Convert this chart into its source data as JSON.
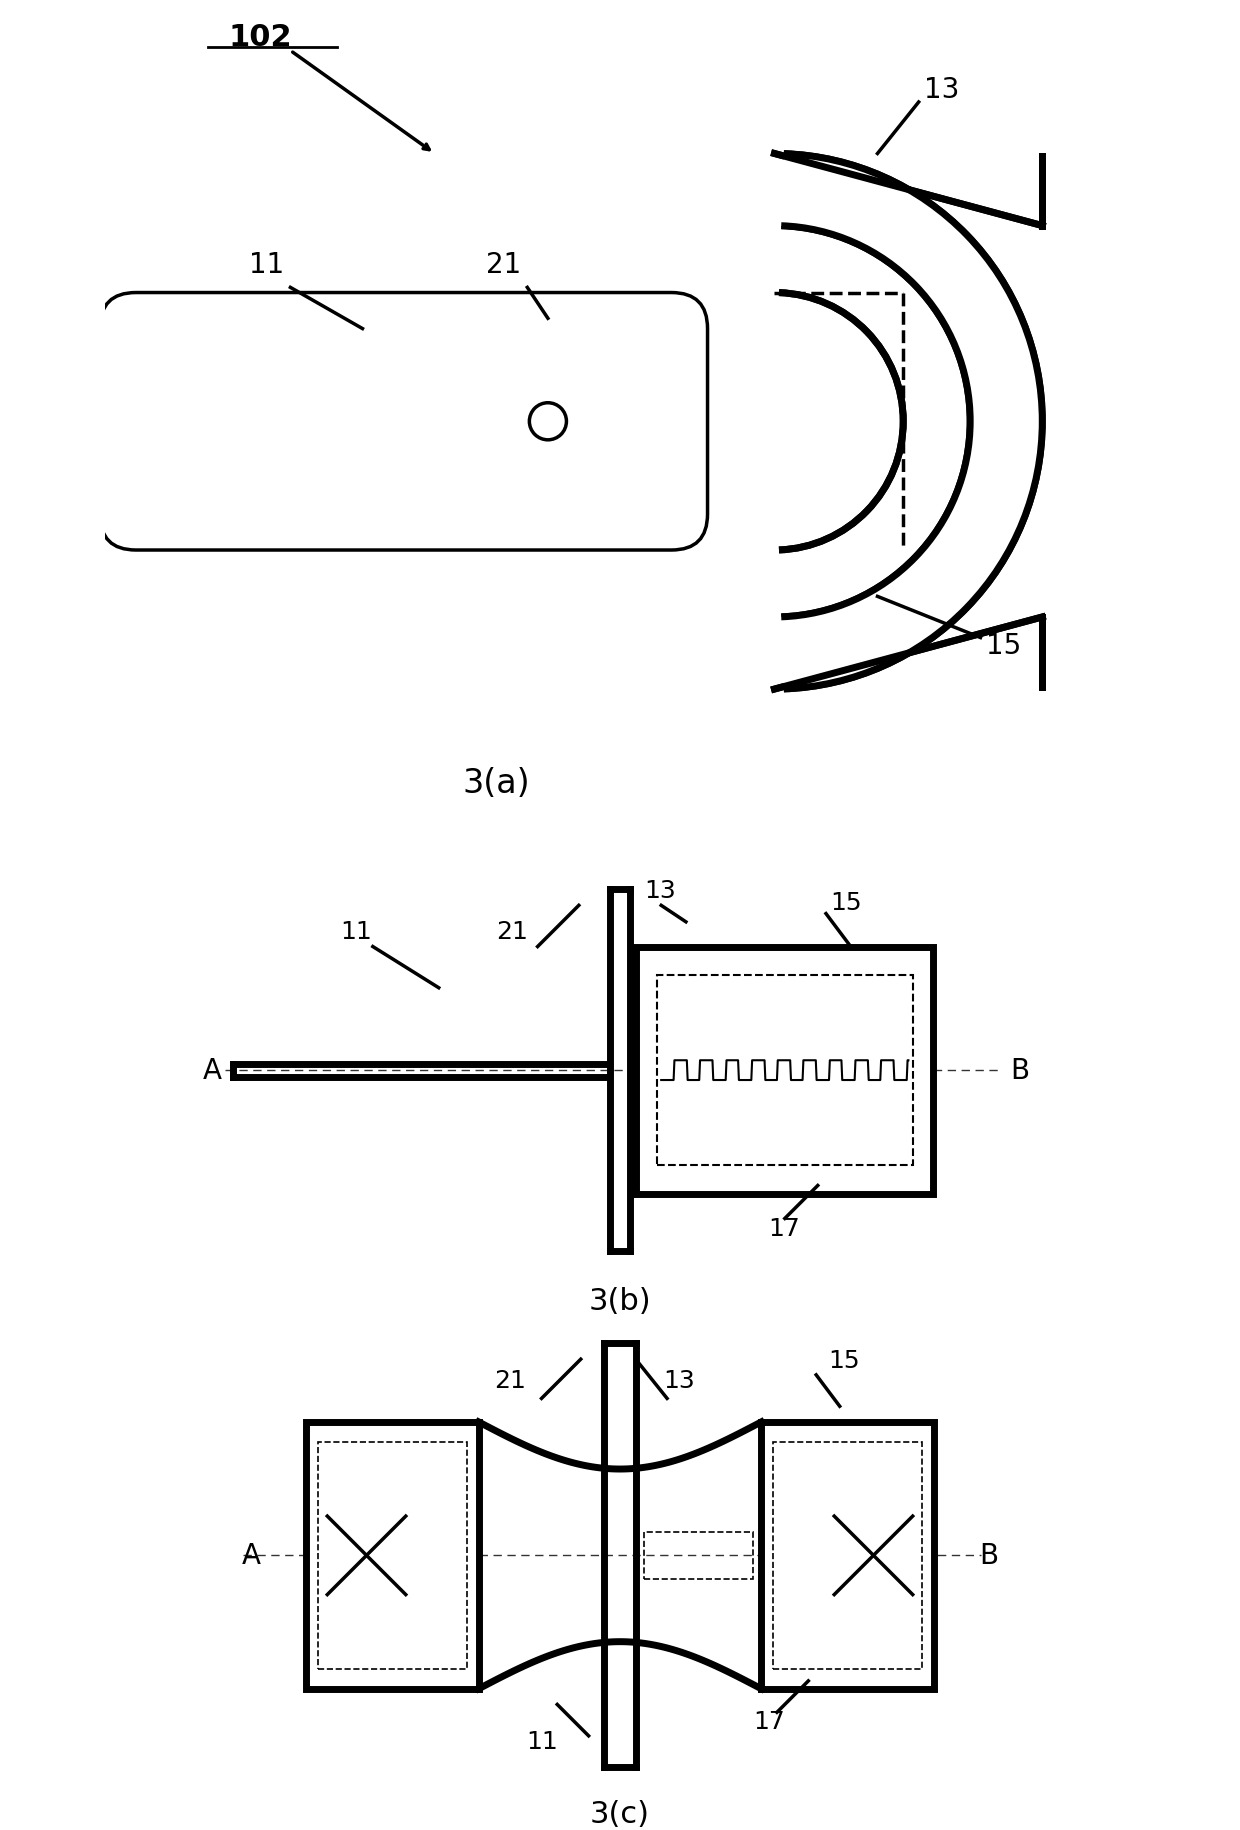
{
  "bg_color": "#ffffff",
  "line_color": "#000000",
  "fig_width": 12.4,
  "fig_height": 18.31,
  "label_102": "102",
  "label_3a": "3(a)",
  "label_3b": "3(b)",
  "label_3c": "3(c)",
  "labels": [
    "11",
    "13",
    "15",
    "17",
    "21"
  ],
  "line_lw": 2.5,
  "thick_lw": 5.0
}
